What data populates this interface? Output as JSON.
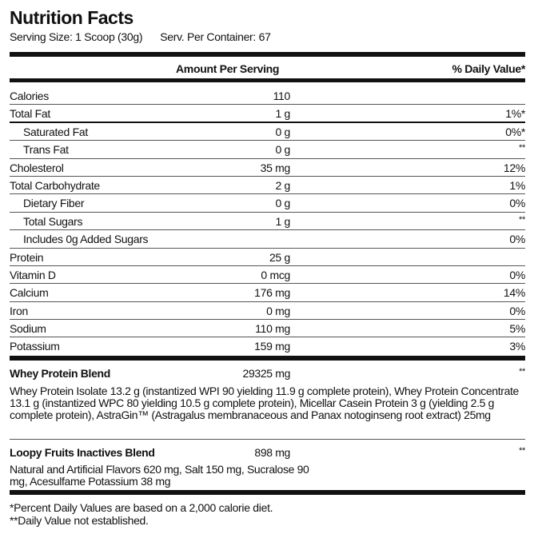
{
  "title": "Nutrition Facts",
  "serving_size": "Serving Size: 1 Scoop (30g)",
  "servings_per_container": "Serv. Per Container: 67",
  "header": {
    "amount": "Amount Per Serving",
    "daily_value": "% Daily Value*"
  },
  "nutrients": [
    {
      "name": "Calories",
      "amount": "110",
      "dv": "",
      "sub": false
    },
    {
      "name": "Total Fat",
      "amount": "1 g",
      "dv": "1%*",
      "sub": false
    },
    {
      "name": "Saturated Fat",
      "amount": "0 g",
      "dv": "0%*",
      "sub": true
    },
    {
      "name": "Trans Fat",
      "amount": "0 g",
      "dv": "**",
      "sub": true
    },
    {
      "name": "Cholesterol",
      "amount": "35 mg",
      "dv": "12%",
      "sub": false
    },
    {
      "name": "Total Carbohydrate",
      "amount": "2 g",
      "dv": "1%",
      "sub": false
    },
    {
      "name": "Dietary Fiber",
      "amount": "0 g",
      "dv": "0%",
      "sub": true
    },
    {
      "name": "Total Sugars",
      "amount": "1 g",
      "dv": "**",
      "sub": true
    },
    {
      "name": "Includes 0g Added Sugars",
      "amount": "",
      "dv": "0%",
      "sub": true
    },
    {
      "name": "Protein",
      "amount": "25 g",
      "dv": "",
      "sub": false
    },
    {
      "name": "Vitamin D",
      "amount": "0 mcg",
      "dv": "0%",
      "sub": false
    },
    {
      "name": "Calcium",
      "amount": "176 mg",
      "dv": "14%",
      "sub": false
    },
    {
      "name": "Iron",
      "amount": "0 mg",
      "dv": "0%",
      "sub": false
    },
    {
      "name": "Sodium",
      "amount": "110 mg",
      "dv": "5%",
      "sub": false
    },
    {
      "name": "Potassium",
      "amount": "159 mg",
      "dv": "3%",
      "sub": false
    }
  ],
  "blends": [
    {
      "name": "Whey Protein Blend",
      "amount": "29325 mg",
      "dv": "**",
      "description": "Whey Protein Isolate 13.2 g (instantized WPI 90 yielding 11.9 g complete protein), Whey Protein Concentrate 13.1 g (instantized WPC 80 yielding 10.5 g complete protein), Micellar Casein Protein 3 g (yielding 2.5 g complete protein), AstraGin™ (Astragalus membranaceous and Panax notoginseng root extract) 25mg"
    },
    {
      "name": "Loopy Fruits Inactives Blend",
      "amount": "898 mg",
      "dv": "**",
      "description": "Natural and Artificial Flavors 620 mg, Salt 150 mg, Sucralose 90 mg, Acesulfame Potassium 38 mg"
    }
  ],
  "footnotes": [
    "*Percent Daily Values are based on a 2,000 calorie diet.",
    "**Daily Value not established."
  ]
}
